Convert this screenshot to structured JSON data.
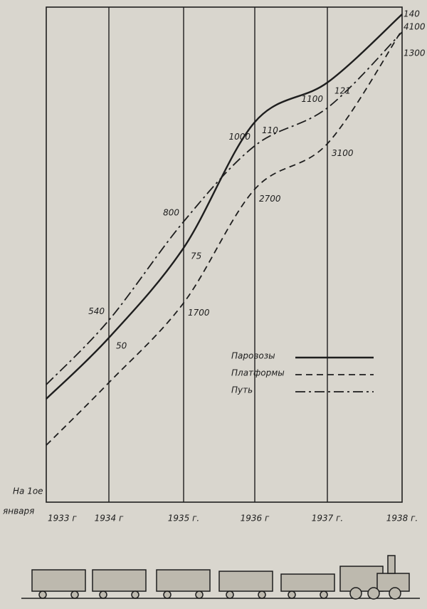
{
  "chart_data": {
    "type": "line",
    "x_label_lines": [
      "На 1ое",
      "января"
    ],
    "categories": [
      "1933 г",
      "1934 г",
      "1935 г.",
      "1936 г",
      "1937 г.",
      "1938 г."
    ],
    "series": [
      {
        "name": "Паровозы",
        "color": "#1e1e1e",
        "dash": "solid",
        "values": [
          33,
          50,
          75,
          110,
          121,
          140
        ],
        "value_labels": [
          null,
          "50",
          "75",
          "110",
          "121",
          "140"
        ]
      },
      {
        "name": "Платформы",
        "color": "#1e1e1e",
        "dash": "dashed",
        "values": [
          450,
          1000,
          1700,
          2700,
          3100,
          4100
        ],
        "value_labels": [
          null,
          null,
          "1700",
          "2700",
          "3100",
          "4100"
        ]
      },
      {
        "name": "Путь",
        "color": "#1e1e1e",
        "dash": "dashdot",
        "values": [
          370,
          540,
          800,
          1000,
          1100,
          1300
        ],
        "value_labels": [
          null,
          "540",
          "800",
          "1000",
          "1100",
          "1300"
        ]
      }
    ]
  }
}
